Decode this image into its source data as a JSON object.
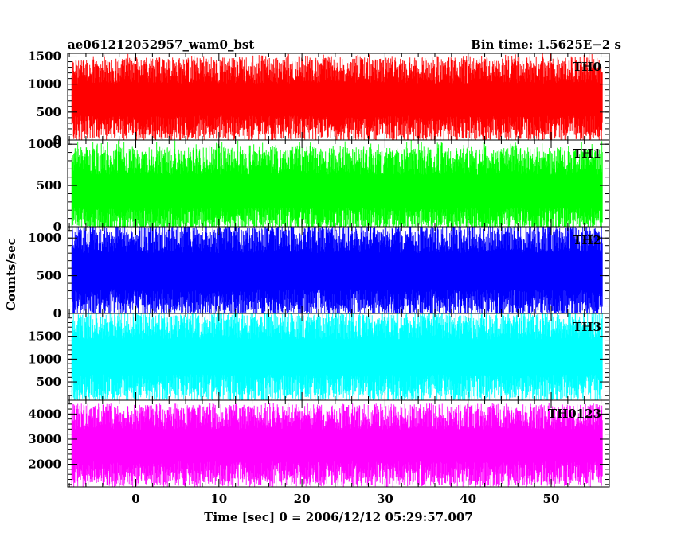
{
  "title_left": "ae061212052957_wam0_bst",
  "title_right": "Bin time: 1.5625E−2 s",
  "chart_data": {
    "type": "line",
    "xlabel": "Time [sec] 0 = 2006/12/12 05:29:57.007",
    "ylabel": "Counts/sec",
    "xlim": [
      -8.2,
      57.0
    ],
    "x_start": -7.7,
    "x_end": 56.2,
    "x_ticks": [
      0,
      10,
      20,
      30,
      40,
      50
    ],
    "panels": [
      {
        "name": "TH0",
        "color": "#ff0000",
        "ylim": [
          0,
          1550
        ],
        "y_ticks": [
          0,
          500,
          1000,
          1500
        ],
        "y_tick_labels": [
          "0",
          "500",
          "1000",
          "1500"
        ],
        "mean": 720,
        "low": 200,
        "high": 1250,
        "min": 20,
        "max": 1550
      },
      {
        "name": "TH1",
        "color": "#00ff00",
        "ylim": [
          0,
          1050
        ],
        "y_ticks": [
          0,
          500,
          1000
        ],
        "y_tick_labels": [
          "0",
          "500",
          "1000"
        ],
        "mean": 420,
        "low": 80,
        "high": 800,
        "min": 0,
        "max": 1050
      },
      {
        "name": "TH2",
        "color": "#0000ff",
        "ylim": [
          0,
          1150
        ],
        "y_ticks": [
          0,
          500,
          1000
        ],
        "y_tick_labels": [
          "0",
          "500",
          "1000"
        ],
        "mean": 560,
        "low": 130,
        "high": 1000,
        "min": 0,
        "max": 1150
      },
      {
        "name": "TH3",
        "color": "#00ffff",
        "ylim": [
          100,
          2000
        ],
        "y_ticks": [
          500,
          1000,
          1500
        ],
        "y_tick_labels": [
          "500",
          "1000",
          "1500"
        ],
        "mean": 1050,
        "low": 350,
        "high": 1750,
        "min": 150,
        "max": 2000
      },
      {
        "name": "TH0123",
        "color": "#ff00ff",
        "ylim": [
          1100,
          4550
        ],
        "y_ticks": [
          2000,
          3000,
          4000
        ],
        "y_tick_labels": [
          "2000",
          "3000",
          "4000"
        ],
        "mean": 2750,
        "low": 1600,
        "high": 3900,
        "min": 1150,
        "max": 4450
      }
    ]
  }
}
